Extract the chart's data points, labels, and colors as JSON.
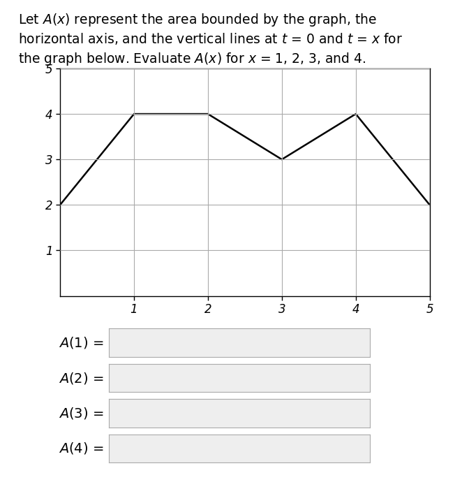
{
  "graph_x": [
    0,
    1,
    2,
    3,
    4,
    5
  ],
  "graph_y": [
    2,
    4,
    4,
    3,
    4,
    2
  ],
  "xlim": [
    0,
    5
  ],
  "ylim": [
    0,
    5
  ],
  "xticks": [
    1,
    2,
    3,
    4,
    5
  ],
  "yticks": [
    1,
    2,
    3,
    4,
    5
  ],
  "line_color": "#000000",
  "line_width": 1.8,
  "grid_color": "#aaaaaa",
  "bg_color": "#ffffff",
  "labels": [
    "$A(1)$ =",
    "$A(2)$ =",
    "$A(3)$ =",
    "$A(4)$ ="
  ],
  "box_color": "#eeeeee",
  "box_border": "#aaaaaa",
  "label_fontsize": 14,
  "tick_fontsize": 12,
  "title_fontsize": 13.5,
  "title_lines": [
    "Let $A(x)$ represent the area bounded by the graph, the",
    "horizontal axis, and the vertical lines at $t$ = 0 and $t$ = $x$ for",
    "the graph below. Evaluate $A(x)$ for $x$ = 1, 2, 3, and 4."
  ]
}
